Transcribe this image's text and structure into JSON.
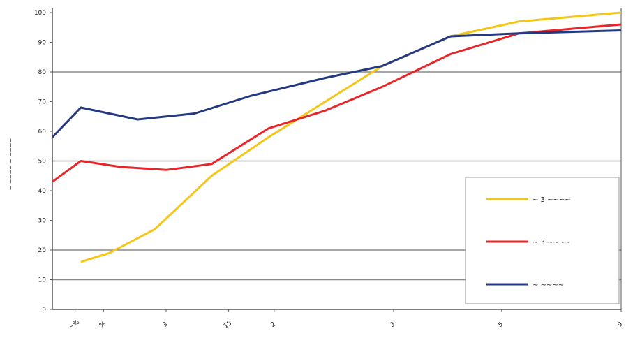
{
  "chart_data": {
    "type": "line",
    "title": "",
    "xlabel": "",
    "ylabel": "~ ~~~~ ~ ~~~~",
    "ylim": [
      0,
      100
    ],
    "y_ticks": [
      0,
      10,
      20,
      30,
      40,
      50,
      60,
      70,
      80,
      90,
      100
    ],
    "y_tick_labels": [
      "0",
      "10",
      "20",
      "30",
      "40",
      "50",
      "60",
      "70",
      "80",
      "90",
      "100"
    ],
    "gridlines": [
      10,
      20,
      50,
      80
    ],
    "grid": true,
    "legend_position": "bottom-right",
    "x_tick_labels": [
      "~%",
      "%",
      "3",
      "15",
      "2",
      "3",
      "5",
      "9"
    ],
    "series": [
      {
        "name": "~ 3 ~~~~",
        "color": "#f5c518",
        "points": [
          [
            0.05,
            16
          ],
          [
            0.1,
            19
          ],
          [
            0.18,
            27
          ],
          [
            0.28,
            45
          ],
          [
            0.38,
            58
          ],
          [
            0.48,
            70
          ],
          [
            0.58,
            82
          ],
          [
            0.7,
            92
          ],
          [
            0.82,
            97
          ],
          [
            1.0,
            100
          ]
        ]
      },
      {
        "name": "~ 3 ~~~~",
        "color": "#e8262a",
        "points": [
          [
            0.0,
            43
          ],
          [
            0.05,
            50
          ],
          [
            0.12,
            48
          ],
          [
            0.2,
            47
          ],
          [
            0.28,
            49
          ],
          [
            0.38,
            61
          ],
          [
            0.48,
            67
          ],
          [
            0.58,
            75
          ],
          [
            0.7,
            86
          ],
          [
            0.82,
            93
          ],
          [
            1.0,
            96
          ]
        ]
      },
      {
        "name": "~ ~~~~",
        "color": "#233a83",
        "points": [
          [
            0.0,
            58
          ],
          [
            0.05,
            68
          ],
          [
            0.15,
            64
          ],
          [
            0.25,
            66
          ],
          [
            0.35,
            72
          ],
          [
            0.48,
            78
          ],
          [
            0.58,
            82
          ],
          [
            0.7,
            92
          ],
          [
            0.82,
            93
          ],
          [
            1.0,
            94
          ]
        ]
      }
    ]
  }
}
